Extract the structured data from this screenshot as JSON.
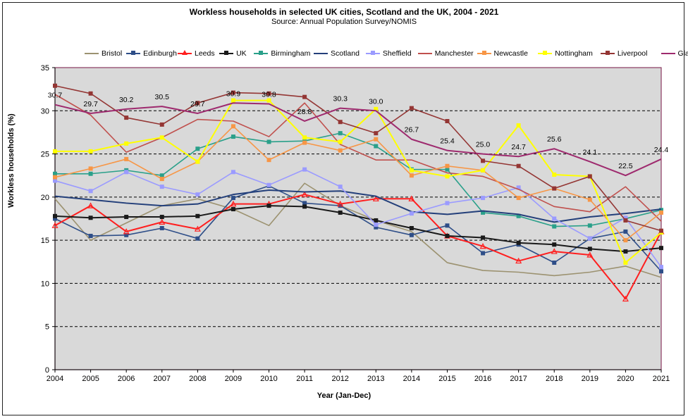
{
  "chart_data": {
    "type": "line",
    "title": "Workless households in selected UK cities, Scotland and the UK, 2004 - 2021",
    "subtitle": "Source: Annual Population Survey/NOMIS",
    "xlabel": "Year (Jan-Dec)",
    "ylabel": "Workless  households (%)",
    "ylim": [
      0,
      35
    ],
    "yticks": [
      0,
      5,
      10,
      15,
      20,
      25,
      30,
      35
    ],
    "grid": "dashed horizontal",
    "legend_position": "top",
    "categories": [
      "2004",
      "2005",
      "2006",
      "2007",
      "2008",
      "2009",
      "2010",
      "2011",
      "2012",
      "2013",
      "2014",
      "2015",
      "2016",
      "2017",
      "2018",
      "2019",
      "2020",
      "2021"
    ],
    "series": [
      {
        "name": "Bristol",
        "color": "#9c9270",
        "marker": "none",
        "values": [
          19.8,
          15.0,
          17.0,
          19.0,
          19.8,
          18.6,
          16.7,
          21.6,
          19.0,
          17.3,
          16.0,
          12.4,
          11.5,
          11.3,
          10.9,
          11.3,
          12.0,
          10.7
        ]
      },
      {
        "name": "Edinburgh",
        "color": "#2e4e88",
        "marker": "square",
        "values": [
          17.5,
          15.5,
          15.6,
          16.4,
          15.2,
          19.9,
          21.3,
          19.3,
          19.0,
          16.5,
          15.6,
          16.7,
          13.5,
          14.5,
          12.4,
          15.2,
          16.0,
          11.4
        ]
      },
      {
        "name": "Leeds",
        "color": "#ff1f1f",
        "marker": "triangle",
        "values": [
          16.7,
          19.0,
          16.0,
          17.1,
          16.3,
          19.2,
          19.2,
          20.3,
          19.2,
          19.8,
          19.8,
          15.5,
          14.3,
          12.6,
          13.7,
          13.3,
          8.2,
          16.0
        ]
      },
      {
        "name": "UK",
        "color": "#1a1a1a",
        "marker": "square",
        "values": [
          17.8,
          17.6,
          17.7,
          17.7,
          17.8,
          18.6,
          19.0,
          18.9,
          18.2,
          17.3,
          16.4,
          15.5,
          15.3,
          14.7,
          14.5,
          14.0,
          13.7,
          14.1
        ]
      },
      {
        "name": "Birmingham",
        "color": "#2aa08a",
        "marker": "square",
        "values": [
          22.7,
          22.7,
          23.1,
          22.5,
          25.6,
          27.0,
          26.4,
          26.5,
          27.4,
          25.9,
          23.2,
          23.2,
          18.2,
          17.8,
          16.6,
          16.7,
          17.5,
          18.5
        ]
      },
      {
        "name": "Scotland",
        "color": "#233f7a",
        "marker": "none",
        "values": [
          20.1,
          19.7,
          19.3,
          19.0,
          19.2,
          20.3,
          20.8,
          20.6,
          20.7,
          20.1,
          18.3,
          18.0,
          18.4,
          18.0,
          17.1,
          17.7,
          18.1,
          18.6
        ]
      },
      {
        "name": "Sheffield",
        "color": "#9b9bff",
        "marker": "square",
        "values": [
          21.9,
          20.7,
          22.9,
          21.2,
          20.3,
          22.9,
          21.4,
          23.2,
          21.2,
          16.8,
          18.1,
          19.3,
          19.9,
          21.1,
          17.5,
          15.2,
          17.6,
          11.9
        ]
      },
      {
        "name": "Manchester",
        "color": "#c0504d",
        "marker": "none",
        "values": [
          31.9,
          29.5,
          25.2,
          26.9,
          29.0,
          28.8,
          27.0,
          30.9,
          26.1,
          24.3,
          24.3,
          22.8,
          22.4,
          20.9,
          18.9,
          18.3,
          21.2,
          17.2
        ]
      },
      {
        "name": "Newcastle",
        "color": "#f79646",
        "marker": "square",
        "values": [
          22.3,
          23.3,
          24.4,
          22.1,
          24.1,
          28.2,
          24.3,
          26.3,
          25.4,
          26.7,
          22.5,
          23.6,
          23.1,
          19.9,
          21.0,
          19.7,
          15.0,
          18.2
        ]
      },
      {
        "name": "Nottingham",
        "color": "#ffff00",
        "marker": "square",
        "values": [
          25.3,
          25.3,
          26.2,
          26.9,
          24.1,
          31.2,
          31.2,
          26.9,
          26.4,
          30.2,
          23.1,
          22.4,
          23.1,
          28.3,
          22.6,
          22.4,
          12.4,
          15.9
        ]
      },
      {
        "name": "Liverpool",
        "color": "#943634",
        "marker": "square",
        "values": [
          32.9,
          32.0,
          29.2,
          28.4,
          30.9,
          32.1,
          32.0,
          31.6,
          28.7,
          27.4,
          30.3,
          28.8,
          24.2,
          23.6,
          21.0,
          22.4,
          17.3,
          16.1
        ]
      },
      {
        "name": "Glasgow",
        "color": "#9e2a6e",
        "marker": "none",
        "values": [
          30.7,
          29.7,
          30.2,
          30.5,
          29.7,
          30.9,
          30.8,
          28.8,
          30.3,
          30.0,
          26.7,
          25.4,
          25.0,
          24.7,
          25.6,
          24.1,
          22.5,
          24.4
        ]
      }
    ],
    "data_labels": {
      "series": "Glasgow",
      "labels": [
        "30.7",
        "29.7",
        "30.2",
        "30.5",
        "29.7",
        "30.9",
        "30.8",
        "28.8",
        "30.3",
        "30.0",
        "26.7",
        "25.4",
        "25.0",
        "24.7",
        "25.6",
        "24.1",
        "22.5",
        "24.4"
      ]
    }
  }
}
